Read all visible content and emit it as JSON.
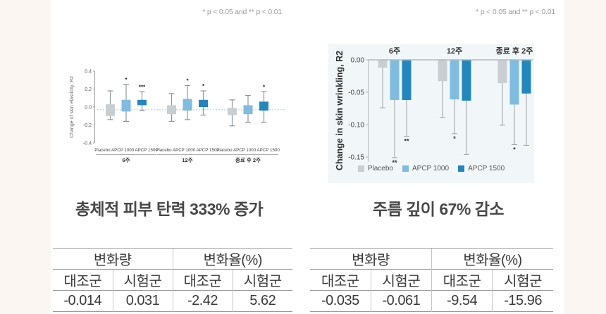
{
  "chart_data": [
    {
      "type": "boxplot",
      "title": "총체적 피부 탄력 333% 증가",
      "ylabel": "Change of skin elasticity, R2",
      "ylim": [
        -0.4,
        0.4
      ],
      "yticks": [
        0.4,
        0.2,
        0.0,
        -0.2,
        -0.4
      ],
      "baseline": -0.03,
      "sig_note": "* p < 0.05 and ** p < 0.01",
      "groups": [
        "6주",
        "12주",
        "종료 후 2주"
      ],
      "series": [
        "Placebo",
        "APCP 1000",
        "APCP 1500"
      ],
      "colors": [
        "#c9ced3",
        "#7fbcdf",
        "#2387bd"
      ],
      "whisker_color": "#8f959b",
      "baseline_color": "#a9c6de",
      "boxes": [
        [
          {
            "low": -0.14,
            "q1": -0.1,
            "q3": 0.03,
            "high": 0.18,
            "sig": ""
          },
          {
            "low": -0.16,
            "q1": -0.05,
            "q3": 0.08,
            "high": 0.25,
            "sig": "*"
          },
          {
            "low": -0.04,
            "q1": 0.02,
            "q3": 0.08,
            "high": 0.17,
            "sig": "***"
          }
        ],
        [
          {
            "low": -0.16,
            "q1": -0.08,
            "q3": 0.02,
            "high": 0.15,
            "sig": ""
          },
          {
            "low": -0.14,
            "q1": -0.04,
            "q3": 0.09,
            "high": 0.24,
            "sig": "*"
          },
          {
            "low": -0.09,
            "q1": 0.0,
            "q3": 0.08,
            "high": 0.18,
            "sig": "*"
          }
        ],
        [
          {
            "low": -0.21,
            "q1": -0.09,
            "q3": -0.01,
            "high": 0.08,
            "sig": ""
          },
          {
            "low": -0.17,
            "q1": -0.08,
            "q3": 0.02,
            "high": 0.13,
            "sig": ""
          },
          {
            "low": -0.17,
            "q1": -0.04,
            "q3": 0.06,
            "high": 0.17,
            "sig": "*"
          }
        ]
      ]
    },
    {
      "type": "bar",
      "title": "주름 깊이 67% 감소",
      "ylabel": "Change in skin wrinkling, R2",
      "ylim": [
        -0.15,
        0
      ],
      "yticks": [
        0.0,
        -0.05,
        -0.1,
        -0.15
      ],
      "sig_note": "* p < 0.05 and ** p < 0.01",
      "groups": [
        "6주",
        "12주",
        "종료 후 2주"
      ],
      "legend_position": "bottom",
      "error_color": "#9aa0a5",
      "series": [
        {
          "name": "Placebo",
          "color": "#c9ced3",
          "values": [
            -0.012,
            -0.033,
            -0.036
          ],
          "error_low": [
            -0.074,
            -0.089,
            -0.101
          ],
          "sig": [
            "",
            "",
            ""
          ]
        },
        {
          "name": "APCP 1000",
          "color": "#7fbcdf",
          "values": [
            -0.062,
            -0.061,
            -0.069
          ],
          "error_low": [
            -0.151,
            -0.114,
            -0.131
          ],
          "sig": [
            "**",
            "*",
            "*"
          ]
        },
        {
          "name": "APCP 1500",
          "color": "#2387bd",
          "values": [
            -0.062,
            -0.063,
            -0.052
          ],
          "error_low": [
            -0.118,
            -0.146,
            -0.132
          ],
          "sig": [
            "**",
            "",
            ""
          ]
        }
      ]
    }
  ],
  "tables": {
    "left": {
      "group_headers": [
        "변화량",
        "변화율(%)"
      ],
      "col_headers": [
        "대조군",
        "시험군",
        "대조군",
        "시험군"
      ],
      "values": [
        "-0.014",
        "0.031",
        "-2.42",
        "5.62"
      ]
    },
    "right": {
      "group_headers": [
        "변화량",
        "변화율(%)"
      ],
      "col_headers": [
        "대조군",
        "시험군",
        "대조군",
        "시험군"
      ],
      "values": [
        "-0.035",
        "-0.061",
        "-9.54",
        "-15.96"
      ]
    }
  }
}
